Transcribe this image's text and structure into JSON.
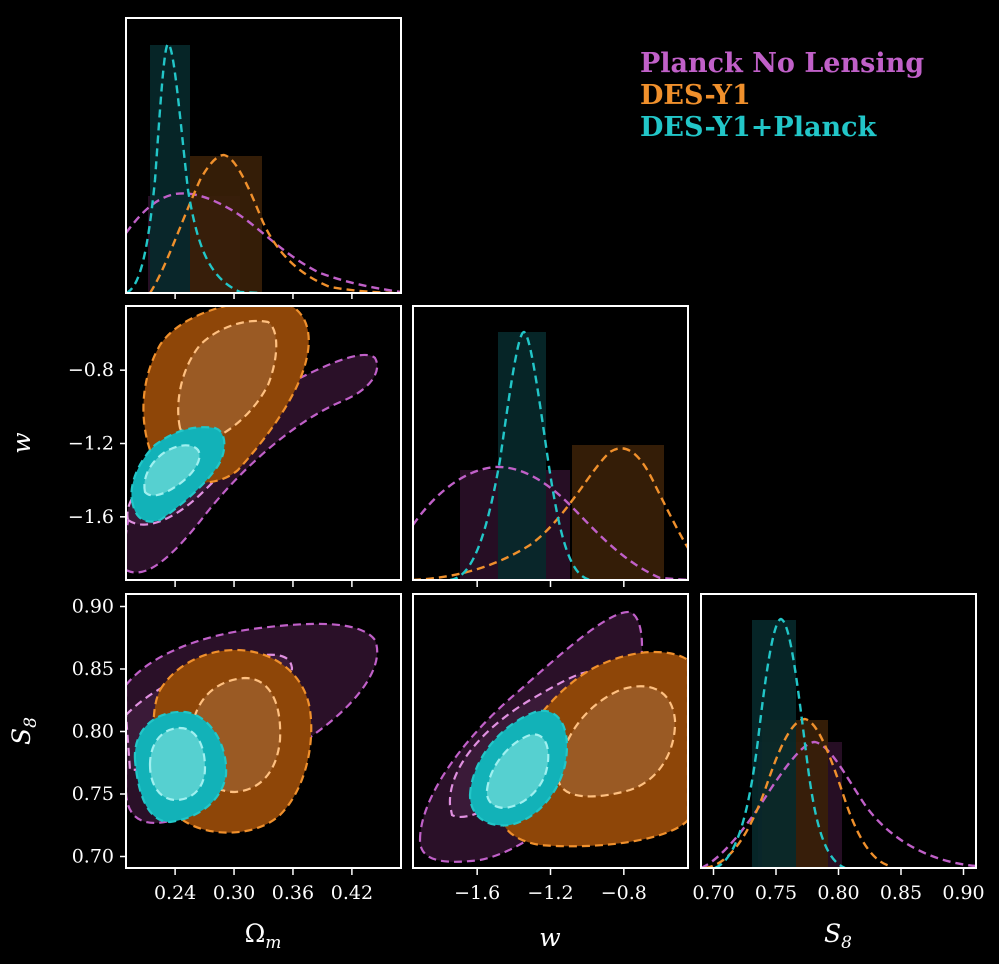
{
  "chart_data": {
    "type": "corner",
    "legend_position": "top-right",
    "series": [
      {
        "name": "Planck No Lensing",
        "color": "#c060c8",
        "fill": "#2a1028",
        "fill_inner": "#40203e"
      },
      {
        "name": "DES-Y1",
        "color": "#f0902c",
        "fill": "#8e4608",
        "fill_inner": "#9a5a24"
      },
      {
        "name": "DES-Y1+Planck",
        "color": "#22c6c8",
        "fill": "#12b2b8",
        "fill_inner": "#56d0d0"
      }
    ],
    "parameters": [
      {
        "label": "Ω_m",
        "ticks": [
          "0.24",
          "0.30",
          "0.36",
          "0.42"
        ],
        "tick_values": [
          0.24,
          0.3,
          0.36,
          0.42
        ],
        "range": [
          0.19,
          0.47
        ]
      },
      {
        "label": "w",
        "ticks": [
          "−1.6",
          "−1.2",
          "−0.8"
        ],
        "tick_values": [
          -1.6,
          -1.2,
          -0.8
        ],
        "range": [
          -1.95,
          -0.45
        ]
      },
      {
        "label": "S_8",
        "ticks": [
          "0.70",
          "0.75",
          "0.80",
          "0.85",
          "0.90"
        ],
        "tick_values": [
          0.7,
          0.75,
          0.8,
          0.85,
          0.9
        ],
        "range": [
          0.69,
          0.91
        ]
      }
    ],
    "marginals": [
      {
        "param": "Ω_m",
        "peak_height": [
          0.36,
          0.5,
          1.0
        ],
        "mode": [
          0.245,
          0.29,
          0.235
        ]
      },
      {
        "param": "w",
        "peak_height": [
          0.44,
          0.51,
          1.0
        ],
        "mode": [
          -1.45,
          -0.82,
          -1.35
        ]
      },
      {
        "param": "S_8",
        "peak_height": [
          0.59,
          0.66,
          1.0
        ],
        "mode": [
          0.8,
          0.795,
          0.775
        ]
      }
    ]
  }
}
